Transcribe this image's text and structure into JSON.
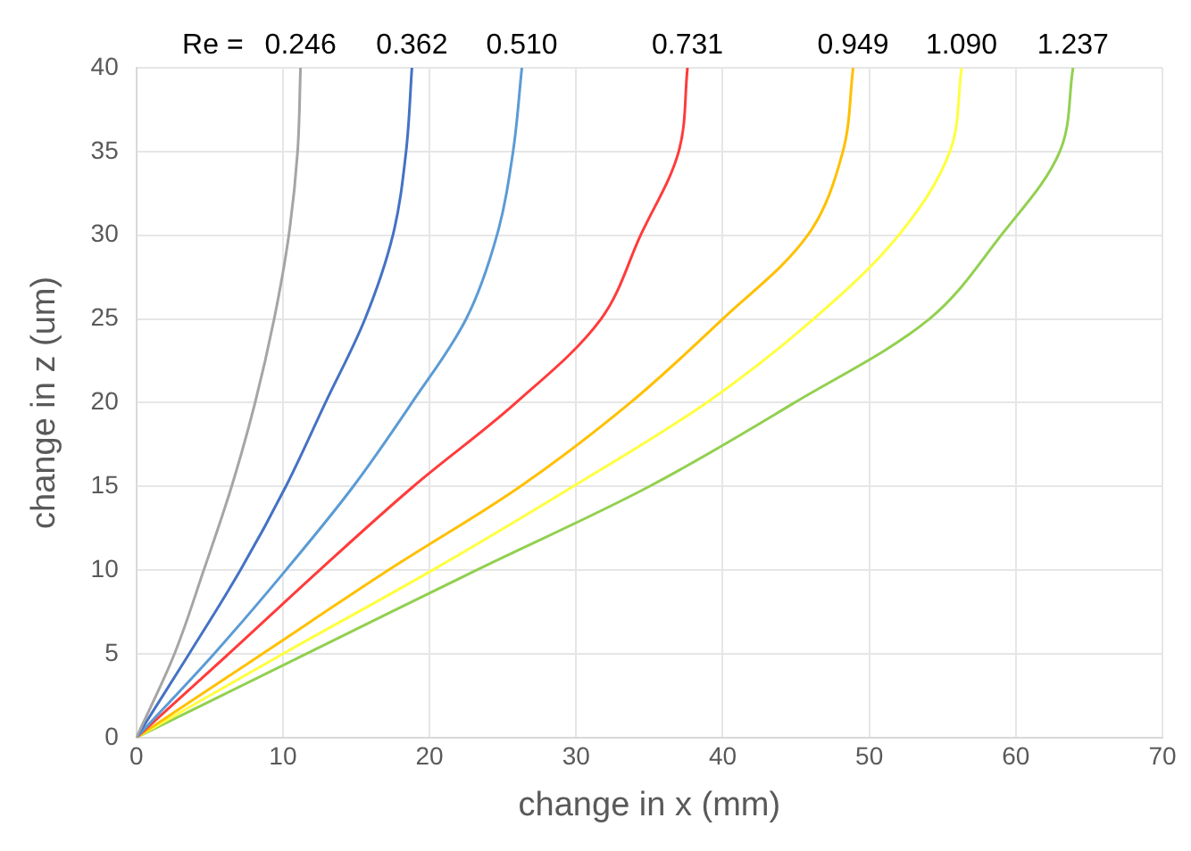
{
  "chart_data": {
    "type": "line",
    "xlabel": "change in x (mm)",
    "ylabel": "change in z (um)",
    "annotations": [
      "Re ="
    ],
    "xlim": [
      0,
      70
    ],
    "xticks": [
      0,
      10,
      20,
      30,
      40,
      50,
      60,
      70
    ],
    "ylim": [
      0,
      40
    ],
    "yticks": [
      0,
      5,
      10,
      15,
      20,
      25,
      30,
      35,
      40
    ],
    "grid": true,
    "legend": false,
    "marker": "none",
    "line_style": "solid",
    "series": [
      {
        "name": "0.246",
        "color": "#a5a5a5",
        "x": [
          0,
          2.6,
          4.6,
          6.5,
          8.1,
          9.4,
          10.4,
          11.0,
          11.2
        ],
        "values": [
          0,
          5,
          10,
          15,
          20,
          25,
          30,
          35,
          40
        ]
      },
      {
        "name": "0.362",
        "color": "#4472c4",
        "x": [
          0,
          3.6,
          7.1,
          10.2,
          12.9,
          15.6,
          17.5,
          18.4,
          18.8
        ],
        "values": [
          0,
          5,
          10,
          15,
          20,
          25,
          30,
          35,
          40
        ]
      },
      {
        "name": "0.510",
        "color": "#5b9bd5",
        "x": [
          0,
          5.3,
          10.2,
          14.8,
          18.8,
          22.5,
          24.6,
          25.7,
          26.3
        ],
        "values": [
          0,
          5,
          10,
          15,
          20,
          25,
          30,
          35,
          40
        ]
      },
      {
        "name": "0.731",
        "color": "#ff3b3b",
        "x": [
          0,
          6.3,
          12.5,
          18.9,
          25.9,
          31.7,
          34.4,
          37.0,
          37.6
        ],
        "values": [
          0,
          5,
          10,
          15,
          20,
          25,
          30,
          35,
          40
        ]
      },
      {
        "name": "0.949",
        "color": "#ffc000",
        "x": [
          0,
          8.6,
          17.2,
          26.2,
          33.7,
          40.0,
          45.8,
          48.2,
          48.9
        ],
        "values": [
          0,
          5,
          10,
          15,
          20,
          25,
          30,
          35,
          40
        ]
      },
      {
        "name": "1.090",
        "color": "#ffff40",
        "x": [
          0,
          10.0,
          20.2,
          29.8,
          38.9,
          46.2,
          52.0,
          55.5,
          56.3
        ],
        "values": [
          0,
          5,
          10,
          15,
          20,
          25,
          30,
          35,
          40
        ]
      },
      {
        "name": "1.237",
        "color": "#92d050",
        "x": [
          0,
          11.6,
          23.2,
          35.0,
          44.9,
          54.1,
          59.0,
          63.0,
          63.9
        ],
        "values": [
          0,
          5,
          10,
          15,
          20,
          25,
          30,
          35,
          40
        ]
      }
    ]
  }
}
